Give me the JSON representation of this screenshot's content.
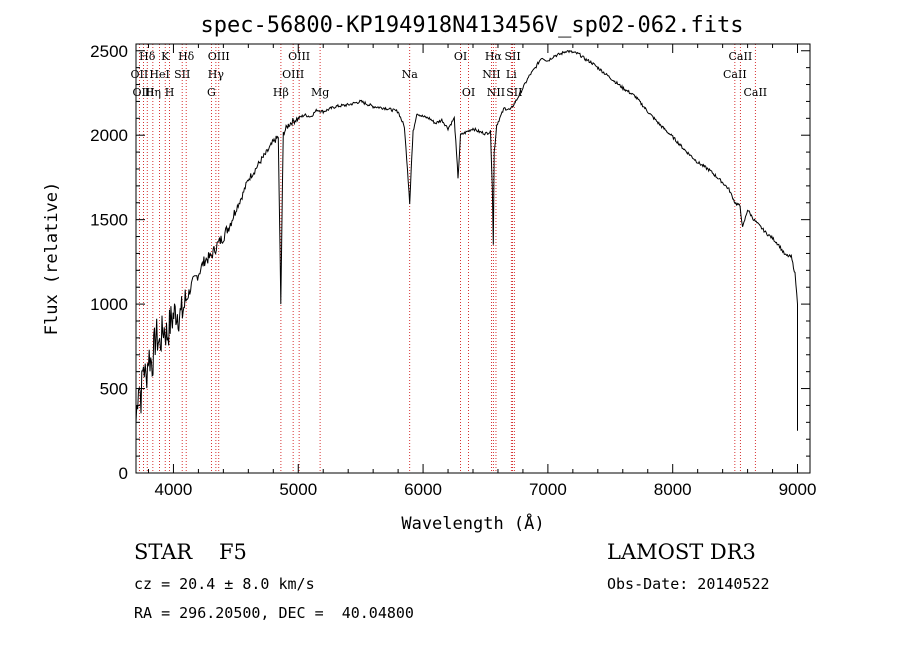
{
  "chart_data": {
    "type": "line",
    "title": "spec-56800-KP194918N413456V_sp02-062.fits",
    "xlabel": "Wavelength (Å)",
    "ylabel": "Flux (relative)",
    "xlim": [
      3700,
      9100
    ],
    "ylim": [
      0,
      2540
    ],
    "xticks": [
      4000,
      5000,
      6000,
      7000,
      8000,
      9000
    ],
    "yticks": [
      0,
      500,
      1000,
      1500,
      2000,
      2500
    ],
    "grid": false,
    "series": [
      {
        "name": "flux",
        "x": [
          3700,
          3720,
          3740,
          3760,
          3780,
          3800,
          3830,
          3860,
          3890,
          3920,
          3950,
          3980,
          4020,
          4060,
          4100,
          4150,
          4200,
          4250,
          4300,
          4350,
          4400,
          4450,
          4500,
          4550,
          4600,
          4650,
          4700,
          4750,
          4800,
          4840,
          4860,
          4880,
          4920,
          4950,
          5000,
          5050,
          5100,
          5150,
          5200,
          5300,
          5400,
          5500,
          5600,
          5700,
          5800,
          5850,
          5875,
          5893,
          5905,
          5920,
          5950,
          6000,
          6050,
          6100,
          6150,
          6200,
          6250,
          6280,
          6300,
          6350,
          6400,
          6450,
          6500,
          6540,
          6555,
          6563,
          6570,
          6590,
          6620,
          6650,
          6700,
          6750,
          6800,
          6850,
          6900,
          6950,
          7000,
          7050,
          7100,
          7150,
          7200,
          7250,
          7300,
          7350,
          7400,
          7500,
          7600,
          7700,
          7800,
          7900,
          8000,
          8100,
          8200,
          8300,
          8400,
          8450,
          8500,
          8540,
          8560,
          8600,
          8650,
          8700,
          8750,
          8800,
          8850,
          8900,
          8950,
          8980,
          9000
        ],
        "y": [
          300,
          550,
          450,
          650,
          550,
          700,
          650,
          820,
          760,
          860,
          820,
          900,
          960,
          930,
          1020,
          1120,
          1180,
          1260,
          1280,
          1350,
          1400,
          1470,
          1560,
          1640,
          1740,
          1790,
          1850,
          1900,
          1960,
          1990,
          1000,
          2010,
          2060,
          2080,
          2100,
          2120,
          2110,
          2150,
          2140,
          2170,
          2180,
          2200,
          2170,
          2160,
          2140,
          2050,
          1800,
          1600,
          1800,
          2020,
          2130,
          2110,
          2100,
          2070,
          2090,
          2040,
          2100,
          1750,
          2000,
          2020,
          2040,
          2020,
          2010,
          2020,
          1700,
          1350,
          1900,
          2060,
          2110,
          2160,
          2150,
          2210,
          2280,
          2350,
          2400,
          2460,
          2440,
          2470,
          2480,
          2500,
          2490,
          2480,
          2450,
          2430,
          2400,
          2340,
          2280,
          2230,
          2140,
          2060,
          1990,
          1910,
          1840,
          1790,
          1720,
          1680,
          1600,
          1580,
          1450,
          1560,
          1500,
          1460,
          1420,
          1390,
          1350,
          1290,
          1280,
          1180,
          1000
        ]
      }
    ],
    "line_labels": [
      {
        "text": "Hδ",
        "wave": 3790,
        "row": 1
      },
      {
        "text": "OII",
        "wave": 3727,
        "row": 2
      },
      {
        "text": "OIII",
        "wave": 3760,
        "row": 3
      },
      {
        "text": "K",
        "wave": 3934,
        "row": 1
      },
      {
        "text": "HeI",
        "wave": 3889,
        "row": 2
      },
      {
        "text": "Hη",
        "wave": 3835,
        "row": 3
      },
      {
        "text": "Hδ",
        "wave": 4102,
        "row": 1
      },
      {
        "text": "SII",
        "wave": 4070,
        "row": 2
      },
      {
        "text": "H",
        "wave": 3969,
        "row": 3
      },
      {
        "text": "OIII",
        "wave": 4363,
        "row": 1
      },
      {
        "text": "Hγ",
        "wave": 4340,
        "row": 2
      },
      {
        "text": "G",
        "wave": 4304,
        "row": 3
      },
      {
        "text": "OIII",
        "wave": 5007,
        "row": 1
      },
      {
        "text": "OIII",
        "wave": 4959,
        "row": 2
      },
      {
        "text": "Hβ",
        "wave": 4861,
        "row": 3
      },
      {
        "text": "Mg",
        "wave": 5175,
        "row": 3
      },
      {
        "text": "Na",
        "wave": 5893,
        "row": 2
      },
      {
        "text": "OI",
        "wave": 6300,
        "row": 1
      },
      {
        "text": "OI",
        "wave": 6364,
        "row": 3
      },
      {
        "text": "Hα",
        "wave": 6563,
        "row": 1
      },
      {
        "text": "SII",
        "wave": 6717,
        "row": 1
      },
      {
        "text": "NII",
        "wave": 6548,
        "row": 2
      },
      {
        "text": "Li",
        "wave": 6707,
        "row": 2
      },
      {
        "text": "NII",
        "wave": 6584,
        "row": 3
      },
      {
        "text": "SII",
        "wave": 6731,
        "row": 3
      },
      {
        "text": "CaII",
        "wave": 8542,
        "row": 1
      },
      {
        "text": "CaII",
        "wave": 8498,
        "row": 2
      },
      {
        "text": "CaII",
        "wave": 8662,
        "row": 3
      }
    ],
    "line_marker_waves": [
      3727,
      3760,
      3790,
      3835,
      3889,
      3934,
      3969,
      4070,
      4102,
      4304,
      4340,
      4363,
      4861,
      4959,
      5007,
      5175,
      5893,
      6300,
      6364,
      6548,
      6563,
      6584,
      6707,
      6717,
      6731,
      8498,
      8542,
      8662
    ],
    "annotations": {
      "object_class": "STAR",
      "subclass": "F5",
      "survey": "LAMOST DR3",
      "redshift": "cz = 20.4 ± 8.0 km/s",
      "obs_date": "Obs-Date: 20140522",
      "coords": "RA = 296.20500, DEC =  40.04800"
    },
    "colors": {
      "spectrum": "#000000",
      "marker": "#cc0000",
      "axes": "#000000"
    }
  }
}
